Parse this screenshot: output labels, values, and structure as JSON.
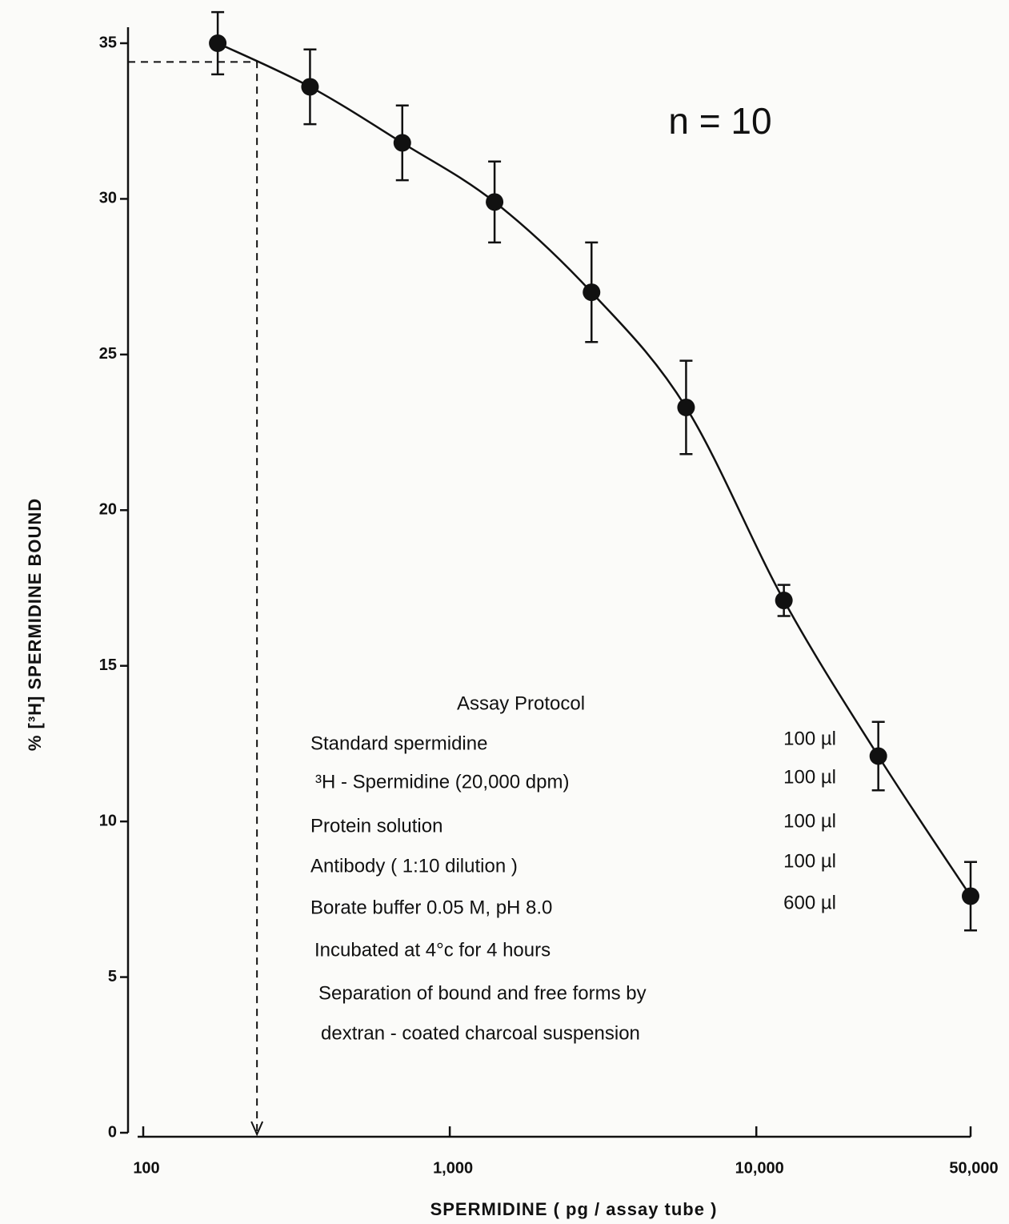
{
  "chart_data": {
    "type": "scatter",
    "x_label": "SPERMIDINE  ( pg / assay tube )",
    "y_label": "% [³H] SPERMIDINE   BOUND",
    "annotation": "n = 10",
    "log_x": true,
    "xlim": [
      100,
      50000
    ],
    "ylim": [
      0,
      35
    ],
    "xticks": [
      100,
      {
        "value": 1000,
        "label": "1,000"
      },
      {
        "value": 10000,
        "label": "10,000"
      },
      {
        "value": 50000,
        "label": "50,000"
      }
    ],
    "yticks": [
      0,
      5,
      10,
      15,
      20,
      25,
      30,
      35
    ],
    "x": [
      175,
      350,
      700,
      1400,
      2900,
      5900,
      12300,
      25000,
      50000
    ],
    "series": [
      {
        "color": "#111111",
        "values": [
          35.0,
          33.6,
          31.8,
          29.9,
          27.0,
          23.3,
          17.1,
          12.1,
          7.6
        ],
        "errors": [
          1.0,
          1.2,
          1.2,
          1.3,
          1.6,
          1.5,
          0.5,
          1.1,
          1.1
        ]
      }
    ],
    "reference": {
      "x": 235,
      "y": 34.4
    },
    "protocol": {
      "title": "Assay  Protocol",
      "rows": [
        [
          "Standard spermidine",
          "100 µl"
        ],
        [
          "³H - Spermidine (20,000 dpm)",
          "100 µl"
        ],
        [
          "Protein solution",
          "100 µl"
        ],
        [
          "Antibody ( 1:10 dilution )",
          "100 µl"
        ],
        [
          "Borate buffer  0.05 M, pH 8.0",
          "600 µl"
        ]
      ],
      "notes": [
        "Incubated at 4°c  for 4 hours",
        "Separation  of  bound  and  free  forms  by",
        "dextran - coated  charcoal  suspension"
      ]
    }
  }
}
